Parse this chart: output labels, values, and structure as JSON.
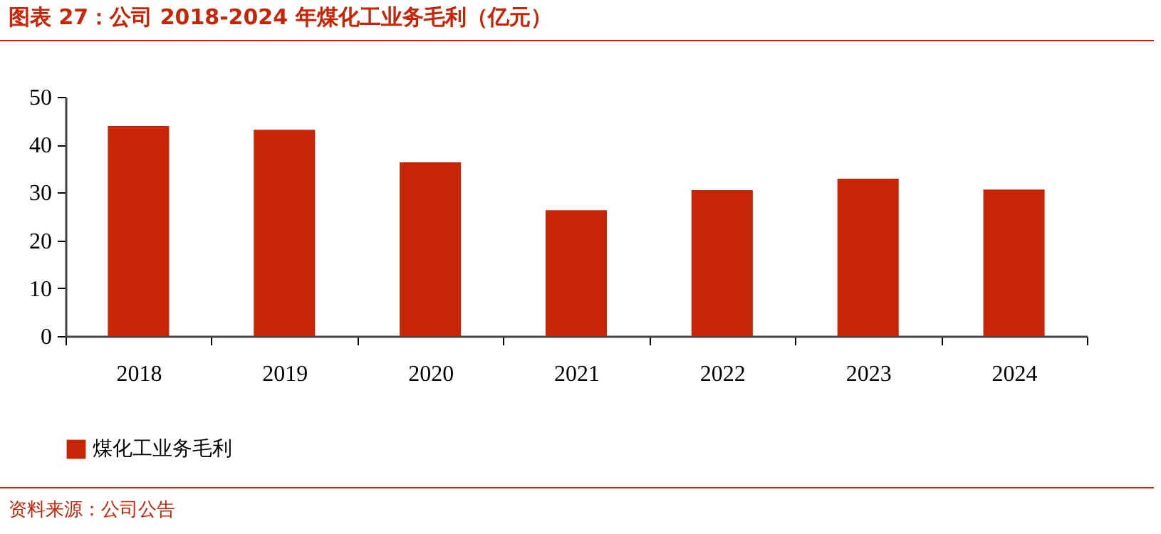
{
  "chart_data": {
    "type": "bar",
    "title": "图表 27：公司 2018-2024 年煤化工业务毛利（亿元）",
    "categories": [
      "2018",
      "2019",
      "2020",
      "2021",
      "2022",
      "2023",
      "2024"
    ],
    "series": [
      {
        "name": "煤化工业务毛利",
        "color": "#c82506",
        "values": [
          43.9,
          43.1,
          36.3,
          26.3,
          30.5,
          32.9,
          30.6
        ]
      }
    ],
    "ylim": [
      0,
      50
    ],
    "yticks": [
      0,
      10,
      20,
      30,
      40,
      50
    ],
    "grid": false,
    "legend": "bottom",
    "annotations": [
      "资料来源：公司公告"
    ]
  }
}
